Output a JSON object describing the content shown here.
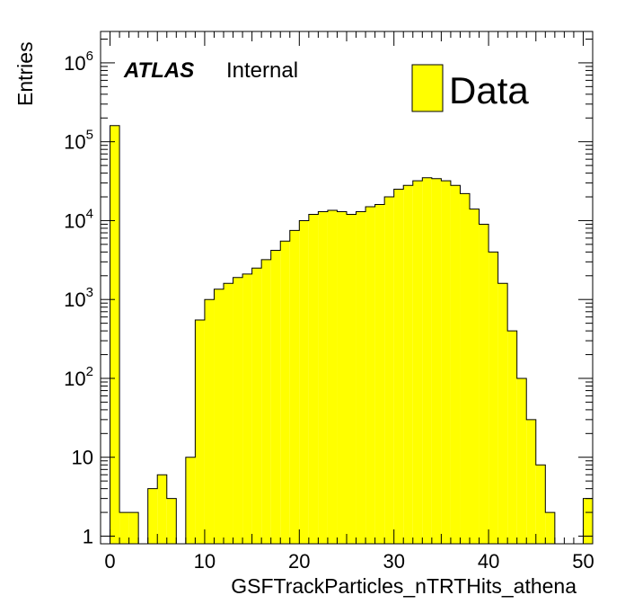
{
  "chart_data": {
    "type": "bar",
    "histogram": true,
    "xlabel": "GSFTrackParticles_nTRTHits_athena",
    "ylabel": "Entries",
    "xlim": [
      -1,
      51
    ],
    "ylim": [
      0.8,
      2500000
    ],
    "y_scale": "log",
    "bin_width": 1,
    "bin_lows": [
      -1,
      0,
      1,
      2,
      3,
      4,
      5,
      6,
      7,
      8,
      9,
      10,
      11,
      12,
      13,
      14,
      15,
      16,
      17,
      18,
      19,
      20,
      21,
      22,
      23,
      24,
      25,
      26,
      27,
      28,
      29,
      30,
      31,
      32,
      33,
      34,
      35,
      36,
      37,
      38,
      39,
      40,
      41,
      42,
      43,
      44,
      45,
      46,
      47,
      48,
      49,
      50
    ],
    "values": [
      0,
      160000,
      2,
      2,
      0,
      4,
      6,
      3,
      0,
      10,
      550,
      1000,
      1350,
      1600,
      1900,
      2100,
      2500,
      3200,
      4200,
      5500,
      7500,
      10000,
      12000,
      13000,
      13500,
      13000,
      12000,
      13000,
      15000,
      16000,
      20000,
      25000,
      28000,
      32000,
      35000,
      34000,
      32000,
      28000,
      22000,
      14000,
      9000,
      4000,
      1600,
      400,
      100,
      30,
      8,
      2,
      0,
      0,
      0,
      3
    ],
    "fill_color": "#ffff00",
    "line_color": "#000000",
    "x_ticks": [
      0,
      10,
      20,
      30,
      40,
      50
    ],
    "y_ticks": [
      {
        "value": 1,
        "base": "1",
        "exp": ""
      },
      {
        "value": 10,
        "base": "10",
        "exp": ""
      },
      {
        "value": 100,
        "base": "10",
        "exp": "2"
      },
      {
        "value": 1000,
        "base": "10",
        "exp": "3"
      },
      {
        "value": 10000,
        "base": "10",
        "exp": "4"
      },
      {
        "value": 100000,
        "base": "10",
        "exp": "5"
      },
      {
        "value": 1000000,
        "base": "10",
        "exp": "6"
      }
    ],
    "legend": {
      "placement": "top-right",
      "entries": [
        {
          "name": "Data",
          "color": "#ffff00"
        }
      ]
    },
    "annotations": {
      "experiment": "ATLAS",
      "status": "Internal"
    }
  }
}
